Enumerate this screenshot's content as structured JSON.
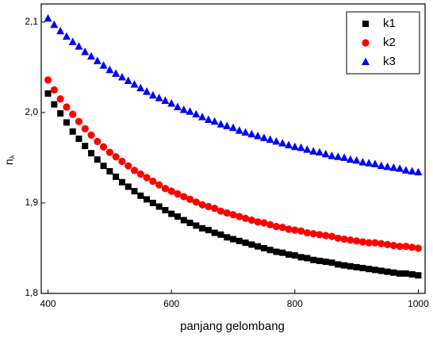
{
  "chart_data": {
    "type": "scatter",
    "x_label": "panjang gelombang",
    "y_label": "n",
    "y_label_sub": "λ",
    "xlim": [
      389,
      1011
    ],
    "xticks": [
      400,
      600,
      800,
      1000
    ],
    "ylim": [
      1.8,
      2.12
    ],
    "yticks": [
      {
        "value": 1.8,
        "label": "1,8"
      },
      {
        "value": 1.9,
        "label": "1,9"
      },
      {
        "value": 2.0,
        "label": "2,0"
      },
      {
        "value": 2.1,
        "label": "2,1"
      }
    ],
    "legend": "top-right",
    "x": [
      400,
      410,
      420,
      430,
      440,
      450,
      460,
      470,
      480,
      490,
      500,
      510,
      520,
      530,
      540,
      550,
      560,
      570,
      580,
      590,
      600,
      610,
      620,
      630,
      640,
      650,
      660,
      670,
      680,
      690,
      700,
      710,
      720,
      730,
      740,
      750,
      760,
      770,
      780,
      790,
      800,
      810,
      820,
      830,
      840,
      850,
      860,
      870,
      880,
      890,
      900,
      910,
      920,
      930,
      940,
      950,
      960,
      970,
      980,
      990,
      1000
    ],
    "series": [
      {
        "name": "k1",
        "color": "#000000",
        "marker": "square",
        "values": [
          2.021,
          2.009,
          1.999,
          1.989,
          1.979,
          1.971,
          1.963,
          1.955,
          1.948,
          1.941,
          1.935,
          1.929,
          1.923,
          1.918,
          1.913,
          1.908,
          1.904,
          1.9,
          1.896,
          1.892,
          1.888,
          1.885,
          1.881,
          1.878,
          1.875,
          1.872,
          1.87,
          1.867,
          1.865,
          1.862,
          1.86,
          1.858,
          1.856,
          1.854,
          1.852,
          1.85,
          1.848,
          1.846,
          1.845,
          1.843,
          1.842,
          1.84,
          1.839,
          1.837,
          1.836,
          1.835,
          1.834,
          1.832,
          1.831,
          1.83,
          1.829,
          1.828,
          1.827,
          1.826,
          1.825,
          1.824,
          1.823,
          1.822,
          1.822,
          1.821,
          1.82
        ]
      },
      {
        "name": "k2",
        "color": "#ff0000",
        "marker": "circle",
        "values": [
          2.036,
          2.025,
          2.015,
          2.006,
          1.998,
          1.99,
          1.982,
          1.975,
          1.968,
          1.962,
          1.956,
          1.951,
          1.946,
          1.941,
          1.936,
          1.932,
          1.928,
          1.924,
          1.92,
          1.916,
          1.913,
          1.91,
          1.907,
          1.904,
          1.901,
          1.898,
          1.896,
          1.894,
          1.891,
          1.889,
          1.887,
          1.885,
          1.883,
          1.881,
          1.879,
          1.878,
          1.876,
          1.874,
          1.873,
          1.871,
          1.87,
          1.869,
          1.867,
          1.866,
          1.865,
          1.864,
          1.863,
          1.861,
          1.86,
          1.859,
          1.858,
          1.857,
          1.856,
          1.856,
          1.855,
          1.854,
          1.853,
          1.852,
          1.852,
          1.851,
          1.85
        ]
      },
      {
        "name": "k3",
        "color": "#0000ff",
        "marker": "triangle",
        "values": [
          2.104,
          2.097,
          2.09,
          2.084,
          2.078,
          2.073,
          2.067,
          2.062,
          2.057,
          2.052,
          2.047,
          2.043,
          2.039,
          2.035,
          2.031,
          2.027,
          2.023,
          2.019,
          2.016,
          2.013,
          2.01,
          2.006,
          2.003,
          2.001,
          1.998,
          1.995,
          1.992,
          1.99,
          1.987,
          1.985,
          1.983,
          1.98,
          1.978,
          1.976,
          1.974,
          1.972,
          1.97,
          1.968,
          1.966,
          1.964,
          1.962,
          1.961,
          1.959,
          1.957,
          1.956,
          1.954,
          1.952,
          1.951,
          1.95,
          1.948,
          1.947,
          1.945,
          1.944,
          1.943,
          1.941,
          1.94,
          1.939,
          1.938,
          1.936,
          1.935,
          1.934
        ]
      }
    ]
  }
}
